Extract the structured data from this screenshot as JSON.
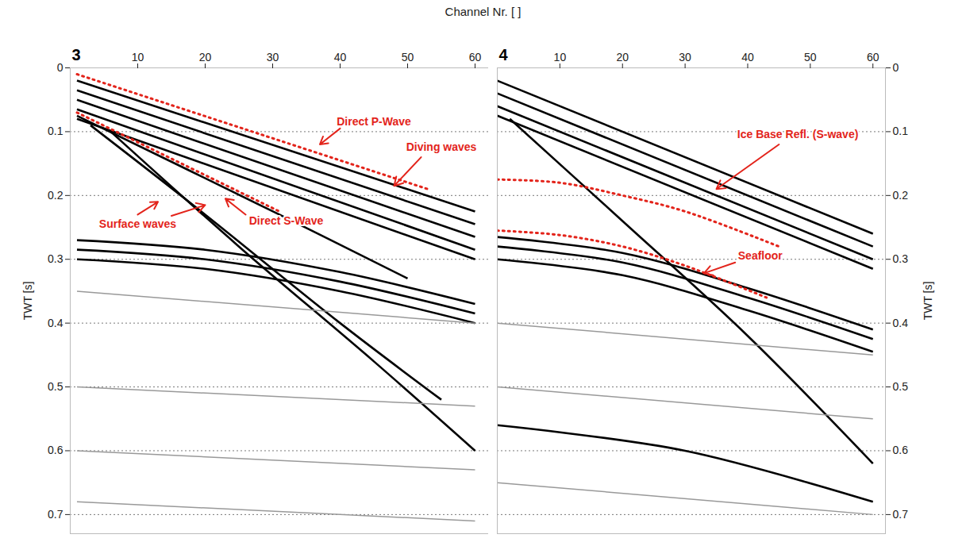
{
  "chart_data": {
    "type": "line",
    "xlabel": "Channel Nr. [ ]",
    "ylabel": "TWT [s]",
    "xlim": [
      0,
      62
    ],
    "xticks": [
      10,
      20,
      30,
      40,
      50,
      60
    ],
    "ylim": [
      0,
      0.73
    ],
    "yticks": [
      0,
      0.1,
      0.2,
      0.3,
      0.4,
      0.5,
      0.6,
      0.7
    ],
    "grid": true,
    "panels": [
      {
        "title": "3",
        "series": [
          {
            "color": "#000000",
            "x": [
              1,
              60
            ],
            "values": [
              0.02,
              0.225
            ]
          },
          {
            "color": "#000000",
            "x": [
              1,
              60
            ],
            "values": [
              0.035,
              0.245
            ]
          },
          {
            "color": "#000000",
            "x": [
              1,
              60
            ],
            "values": [
              0.05,
              0.265
            ]
          },
          {
            "color": "#000000",
            "x": [
              1,
              60
            ],
            "values": [
              0.065,
              0.285
            ]
          },
          {
            "color": "#000000",
            "x": [
              1,
              60
            ],
            "values": [
              0.08,
              0.3
            ]
          },
          {
            "color": "#000000",
            "x": [
              1,
              31,
              50
            ],
            "values": [
              0.075,
              0.23,
              0.33
            ]
          },
          {
            "color": "#000000",
            "x": [
              3,
              20,
              40,
              55
            ],
            "values": [
              0.09,
              0.23,
              0.4,
              0.52
            ]
          },
          {
            "color": "#000000",
            "x": [
              6,
              25,
              45,
              60
            ],
            "values": [
              0.1,
              0.28,
              0.46,
              0.6
            ]
          },
          {
            "color": "#000000",
            "x": [
              1,
              20,
              40,
              60
            ],
            "values": [
              0.27,
              0.285,
              0.32,
              0.37
            ]
          },
          {
            "color": "#000000",
            "x": [
              1,
              20,
              40,
              60
            ],
            "values": [
              0.285,
              0.3,
              0.335,
              0.385
            ]
          },
          {
            "color": "#000000",
            "x": [
              1,
              20,
              40,
              60
            ],
            "values": [
              0.3,
              0.315,
              0.35,
              0.4
            ]
          },
          {
            "color": "#999999",
            "x": [
              1,
              60
            ],
            "values": [
              0.35,
              0.4
            ]
          },
          {
            "color": "#999999",
            "x": [
              1,
              60
            ],
            "values": [
              0.5,
              0.53
            ]
          },
          {
            "color": "#999999",
            "x": [
              1,
              60
            ],
            "values": [
              0.6,
              0.63
            ]
          },
          {
            "color": "#999999",
            "x": [
              1,
              60
            ],
            "values": [
              0.68,
              0.71
            ]
          },
          {
            "color": "#e3241b",
            "line_style": "dotted",
            "x": [
              1,
              53
            ],
            "values": [
              0.01,
              0.19
            ]
          },
          {
            "color": "#e3241b",
            "line_style": "dotted",
            "x": [
              1,
              31
            ],
            "values": [
              0.07,
              0.225
            ]
          }
        ],
        "annotations": [
          {
            "text": "Direct P-Wave",
            "x": 45,
            "y": 0.085,
            "arrows": [
              [
                40,
                0.095,
                37,
                0.12
              ]
            ]
          },
          {
            "text": "Diving waves",
            "x": 55,
            "y": 0.125,
            "arrows": [
              [
                52,
                0.14,
                48,
                0.185
              ]
            ]
          },
          {
            "text": "Direct S-Wave",
            "x": 32,
            "y": 0.24,
            "arrows": [
              [
                26,
                0.23,
                23,
                0.205
              ]
            ]
          },
          {
            "text": "Surface waves",
            "x": 10,
            "y": 0.245,
            "arrows": [
              [
                10,
                0.23,
                13,
                0.21
              ],
              [
                15,
                0.232,
                20,
                0.215
              ]
            ]
          }
        ]
      },
      {
        "title": "4",
        "series": [
          {
            "color": "#000000",
            "x": [
              0,
              60
            ],
            "values": [
              0.02,
              0.26
            ]
          },
          {
            "color": "#000000",
            "x": [
              0,
              60
            ],
            "values": [
              0.04,
              0.28
            ]
          },
          {
            "color": "#000000",
            "x": [
              0,
              60
            ],
            "values": [
              0.06,
              0.3
            ]
          },
          {
            "color": "#000000",
            "x": [
              0,
              60
            ],
            "values": [
              0.075,
              0.315
            ]
          },
          {
            "color": "#000000",
            "x": [
              2,
              20,
              40,
              60
            ],
            "values": [
              0.08,
              0.24,
              0.42,
              0.62
            ]
          },
          {
            "color": "#000000",
            "x": [
              0,
              20,
              40,
              60
            ],
            "values": [
              0.265,
              0.29,
              0.345,
              0.41
            ]
          },
          {
            "color": "#000000",
            "x": [
              0,
              20,
              40,
              60
            ],
            "values": [
              0.28,
              0.305,
              0.36,
              0.425
            ]
          },
          {
            "color": "#000000",
            "x": [
              0,
              20,
              40,
              60
            ],
            "values": [
              0.3,
              0.325,
              0.38,
              0.445
            ]
          },
          {
            "color": "#000000",
            "x": [
              0,
              30,
              60
            ],
            "values": [
              0.56,
              0.6,
              0.68
            ]
          },
          {
            "color": "#999999",
            "x": [
              0,
              60
            ],
            "values": [
              0.4,
              0.45
            ]
          },
          {
            "color": "#999999",
            "x": [
              0,
              60
            ],
            "values": [
              0.5,
              0.55
            ]
          },
          {
            "color": "#999999",
            "x": [
              0,
              60
            ],
            "values": [
              0.65,
              0.7
            ]
          },
          {
            "color": "#e3241b",
            "line_style": "dotted",
            "x": [
              0,
              10,
              20,
              30,
              45
            ],
            "values": [
              0.175,
              0.18,
              0.2,
              0.225,
              0.28
            ]
          },
          {
            "color": "#e3241b",
            "line_style": "dotted",
            "x": [
              0,
              10,
              20,
              30,
              43
            ],
            "values": [
              0.255,
              0.262,
              0.28,
              0.31,
              0.36
            ]
          }
        ],
        "annotations": [
          {
            "text": "Ice Base Refl. (S-wave)",
            "x": 48,
            "y": 0.105,
            "arrows": [
              [
                45,
                0.12,
                35,
                0.19
              ]
            ]
          },
          {
            "text": "Seafloor",
            "x": 42,
            "y": 0.295,
            "arrows": [
              [
                38,
                0.305,
                33,
                0.322
              ]
            ]
          }
        ]
      }
    ]
  }
}
